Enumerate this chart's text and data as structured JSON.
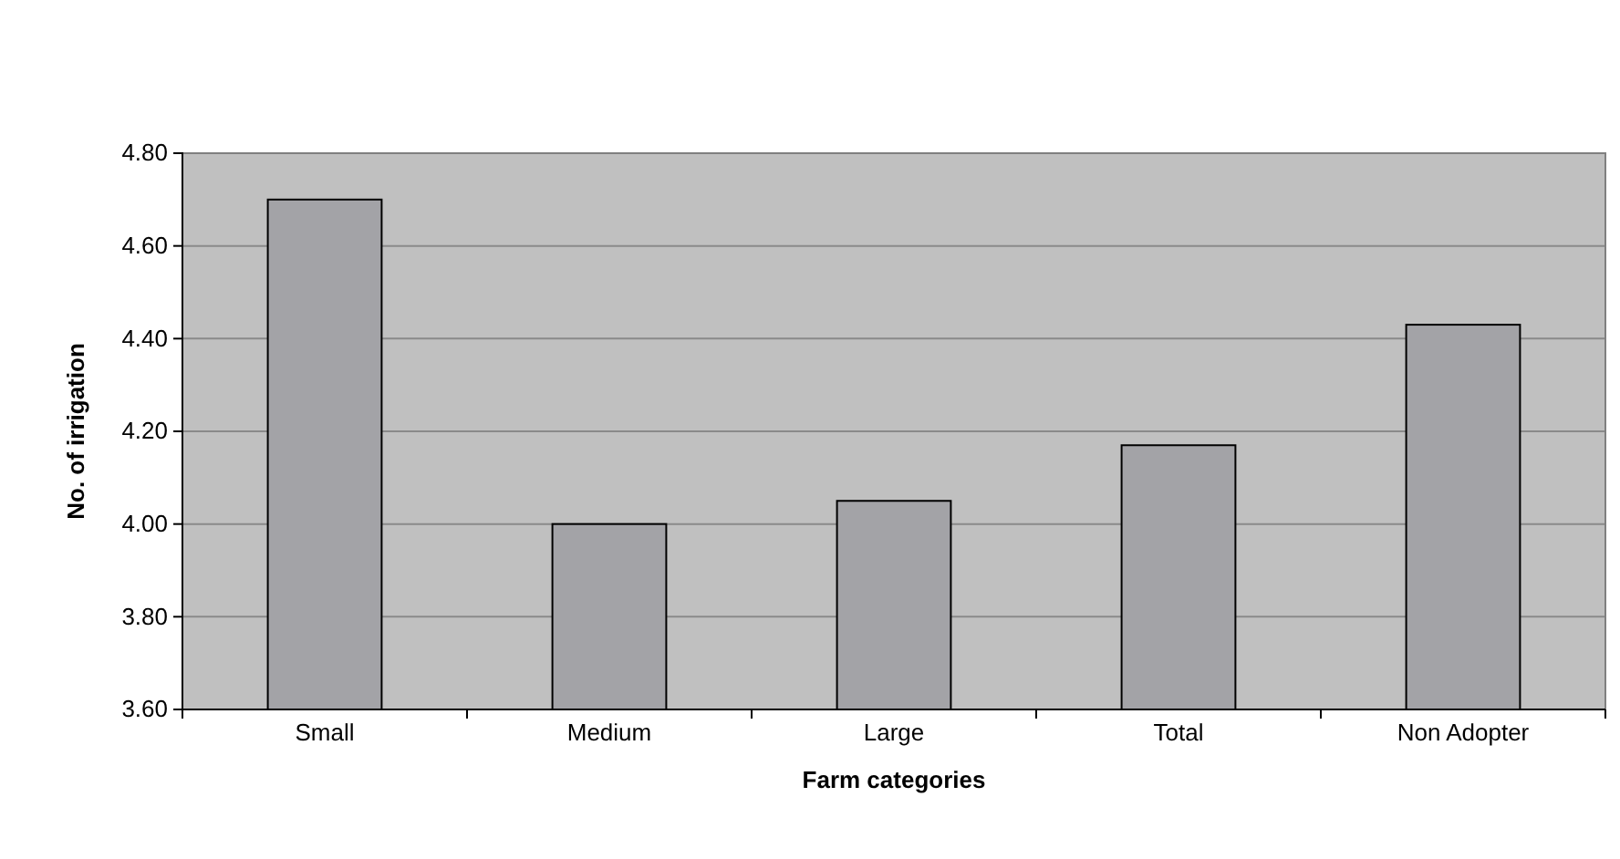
{
  "chart_data": {
    "type": "bar",
    "xlabel": "Farm categories",
    "ylabel": "No. of irrigation",
    "categories": [
      "Small",
      "Medium",
      "Large",
      "Total",
      "Non Adopter"
    ],
    "values": [
      4.7,
      4.0,
      4.05,
      4.17,
      4.43
    ],
    "color": "#a3a3a7",
    "ylim": [
      3.6,
      4.8
    ],
    "yticks": [
      {
        "value": 3.6,
        "label": "3.60"
      },
      {
        "value": 3.8,
        "label": "3.80"
      },
      {
        "value": 4.0,
        "label": "4.00"
      },
      {
        "value": 4.2,
        "label": "4.20"
      },
      {
        "value": 4.4,
        "label": "4.40"
      },
      {
        "value": 4.6,
        "label": "4.60"
      },
      {
        "value": 4.8,
        "label": "4.80"
      }
    ],
    "grid": "y"
  }
}
